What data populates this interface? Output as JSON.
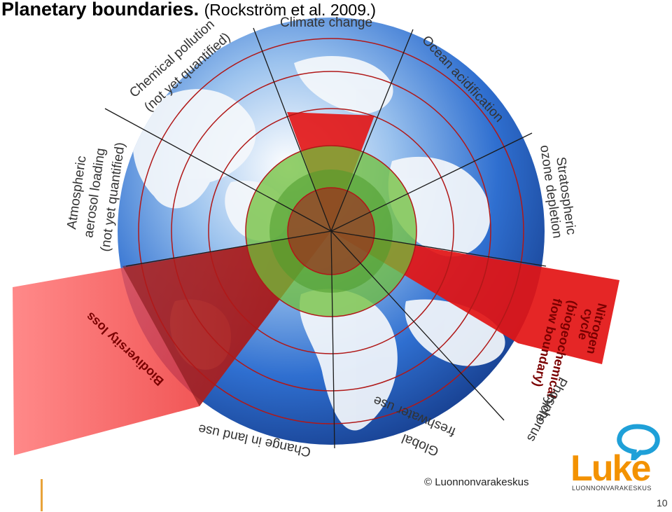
{
  "title": {
    "main": "Planetary boundaries.",
    "sub": "(Rockström et al. 2009.)"
  },
  "labels": {
    "climate_change": "Climate change",
    "ocean_acidification": "Ocean acidification",
    "stratospheric_line1": "Stratospheric",
    "stratospheric_line2": "ozone depletion",
    "nitrogen_line1": "Nitrogen",
    "nitrogen_line2": "cycle",
    "nitrogen_line3": "(biogeochemical",
    "nitrogen_line4": "flow boundary)",
    "phosphorus_line1": "Phosphorus",
    "phosphorus_line2": "cycle",
    "freshwater_line1": "Global",
    "freshwater_line2": "freshwater use",
    "land_use": "Change in land use",
    "biodiversity": "Biodiversity loss",
    "aerosol_line1": "Atmospheric",
    "aerosol_line2": "aerosol loading",
    "aerosol_line3": "(not yet quantified)",
    "chemical_line1": "Chemical pollution",
    "chemical_line2": "(not yet quantified)"
  },
  "colors": {
    "safe_zone": "#6fbf3a",
    "exceeded": "#e31414",
    "ocean": "#2f6fd0",
    "grid_line": "#b01818",
    "brand": "#f39200",
    "brand_bubble": "#1fa0d8"
  },
  "footer": {
    "copyright": "© Luonnonvarakeskus",
    "logo_word": "Luke",
    "logo_org": "LUONNONVARAKESKUS",
    "page_number": "10"
  }
}
